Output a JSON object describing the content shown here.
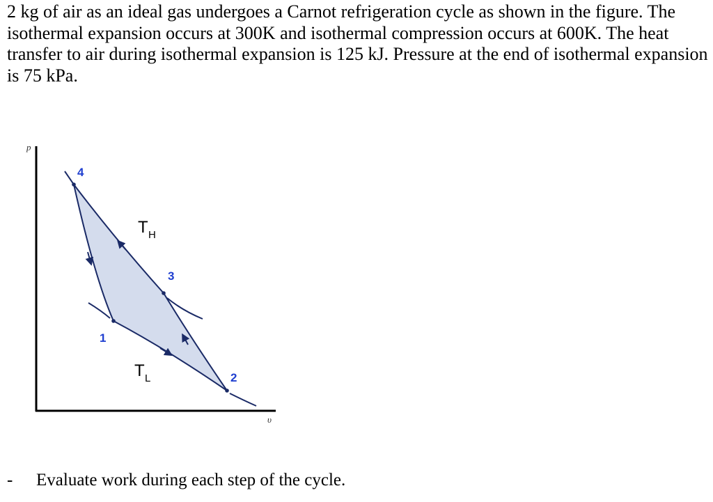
{
  "problem": {
    "text": "2 kg of air as an ideal gas undergoes a Carnot refrigeration cycle as shown in the figure. The isothermal expansion occurs at 300K and isothermal compression occurs at 600K. The heat transfer to air during isothermal expansion is 125 kJ. Pressure at the end of isothermal expansion is 75 kPa."
  },
  "diagram": {
    "y_axis_label": "p",
    "x_axis_label": "υ",
    "states": [
      "4",
      "3",
      "1",
      "2"
    ],
    "high_temp": {
      "symbol": "T",
      "subscript": "H"
    },
    "low_temp": {
      "symbol": "T",
      "subscript": "L"
    },
    "fill_color": "#d4dced",
    "label_color": "#1f3fd0"
  },
  "task": {
    "bullet": "-",
    "text": "Evaluate work during each step of the cycle."
  }
}
